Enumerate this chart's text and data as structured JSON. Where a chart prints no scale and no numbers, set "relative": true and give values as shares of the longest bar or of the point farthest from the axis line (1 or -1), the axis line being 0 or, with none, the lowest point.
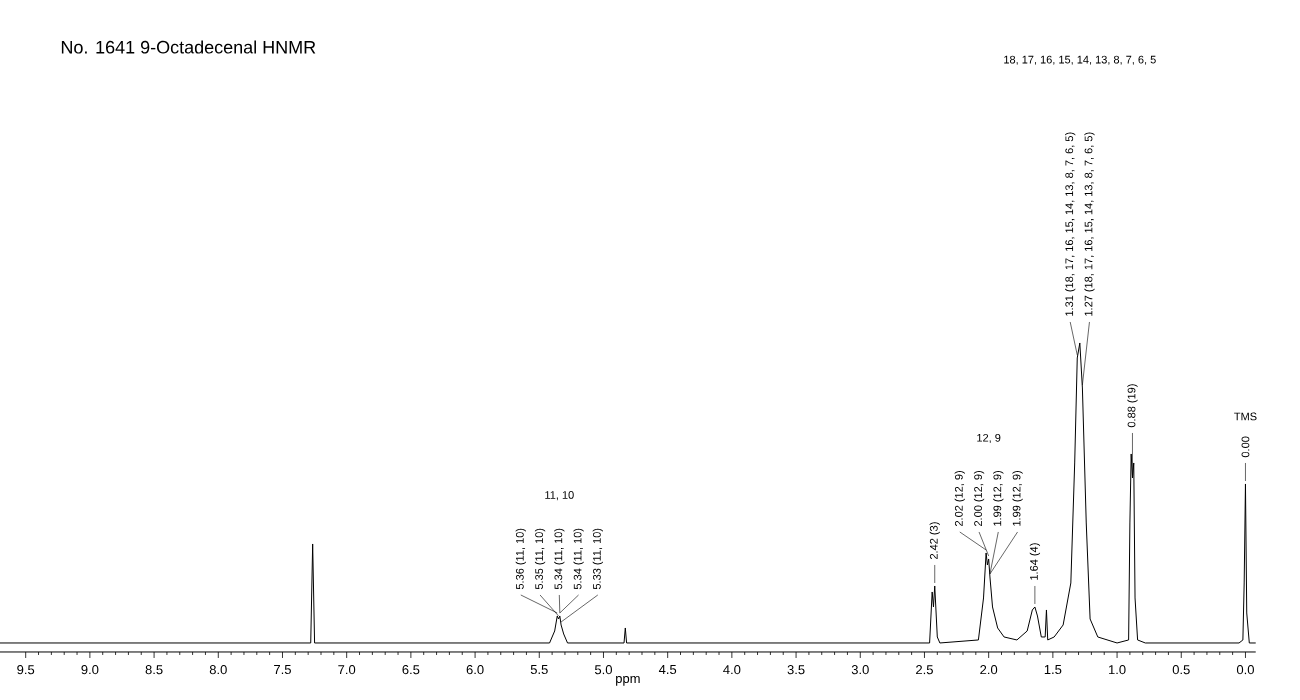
{
  "chart_data": {
    "type": "line",
    "title": "No. 1641 9-Octadecenal HNMR",
    "xlabel": "ppm",
    "relative": true,
    "tick_labels": "x",
    "xlim": [
      9.7,
      -0.08
    ],
    "xticks": [
      9.5,
      {
        "value": 9,
        "label": "9.0"
      },
      8.5,
      {
        "value": 8,
        "label": "8.0"
      },
      7.5,
      {
        "value": 7,
        "label": "7.0"
      },
      6.5,
      {
        "value": 6,
        "label": "6.0"
      },
      5.5,
      {
        "value": 5,
        "label": "5.0"
      },
      4.5,
      {
        "value": 4,
        "label": "4.0"
      },
      3.5,
      {
        "value": 3,
        "label": "3.0"
      },
      2.5,
      {
        "value": 2,
        "label": "2.0"
      },
      1.5,
      {
        "value": 1,
        "label": "1.0"
      },
      0.5,
      {
        "value": 0,
        "label": "0.0"
      }
    ],
    "x": [
      9.7,
      7.28,
      7.265,
      7.25,
      5.42,
      5.38,
      5.36,
      5.35,
      5.34,
      5.33,
      5.31,
      5.28,
      4.84,
      4.83,
      4.82,
      2.46,
      2.44,
      2.43,
      2.42,
      2.4,
      2.38,
      2.08,
      2.04,
      2.02,
      2.01,
      2.0,
      1.99,
      1.97,
      1.93,
      1.88,
      1.78,
      1.7,
      1.66,
      1.64,
      1.62,
      1.59,
      1.56,
      1.55,
      1.54,
      1.49,
      1.42,
      1.36,
      1.33,
      1.31,
      1.29,
      1.27,
      1.24,
      1.21,
      1.15,
      1.0,
      0.91,
      0.9,
      0.89,
      0.88,
      0.87,
      0.86,
      0.84,
      0.78,
      0.05,
      0.02,
      0.01,
      0.0,
      -0.01,
      -0.03,
      -0.08
    ],
    "series": [
      {
        "color": "#000000",
        "values": [
          0,
          0,
          0.33,
          0,
          0,
          0.04,
          0.09,
          0.08,
          0.09,
          0.06,
          0.03,
          0,
          0,
          0.05,
          0,
          0,
          0.17,
          0.12,
          0.19,
          0.02,
          0,
          0.01,
          0.15,
          0.3,
          0.26,
          0.28,
          0.22,
          0.12,
          0.05,
          0.02,
          0.01,
          0.04,
          0.11,
          0.12,
          0.09,
          0.02,
          0.02,
          0.11,
          0.01,
          0.02,
          0.06,
          0.2,
          0.6,
          0.95,
          1.0,
          0.85,
          0.4,
          0.08,
          0.02,
          0,
          0.01,
          0.4,
          0.63,
          0.55,
          0.6,
          0.15,
          0.01,
          0,
          0,
          0.01,
          0.2,
          0.53,
          0.1,
          0,
          0
        ]
      }
    ],
    "annotations": [
      "11, 10",
      {
        "text": "5.36 (11, 10)",
        "x": 5.36,
        "y": 0.09
      },
      {
        "text": "5.35 (11, 10)",
        "x": 5.35,
        "y": 0.08
      },
      {
        "text": "5.34 (11, 10)",
        "x": 5.34,
        "y": 0.09
      },
      {
        "text": "5.34 (11, 10)",
        "x": 5.34,
        "y": 0.09
      },
      {
        "text": "5.33 (11, 10)",
        "x": 5.33,
        "y": 0.06
      },
      {
        "text": "2.42 (3)",
        "x": 2.42,
        "y": 0.19
      },
      "12, 9",
      {
        "text": "2.02 (12, 9)",
        "x": 2.02,
        "y": 0.3
      },
      {
        "text": "2.00 (12, 9)",
        "x": 2.0,
        "y": 0.28
      },
      {
        "text": "1.99 (12, 9)",
        "x": 1.99,
        "y": 0.22
      },
      {
        "text": "1.99 (12, 9)",
        "x": 1.99,
        "y": 0.22
      },
      {
        "text": "1.64 (4)",
        "x": 1.64,
        "y": 0.12
      },
      "18, 17, 16, 15, 14, 13, 8, 7, 6, 5",
      {
        "text": "1.31 (18, 17, 16, 15, 14, 13, 8, 7, 6, 5)",
        "x": 1.31,
        "y": 0.95
      },
      {
        "text": "1.27 (18, 17, 16, 15, 14, 13, 8, 7, 6, 5)",
        "x": 1.27,
        "y": 0.85
      },
      {
        "text": "0.88 (19)",
        "x": 0.88,
        "y": 0.55
      },
      "TMS",
      {
        "text": "0.00",
        "x": 0.0,
        "y": 0.53
      }
    ]
  }
}
